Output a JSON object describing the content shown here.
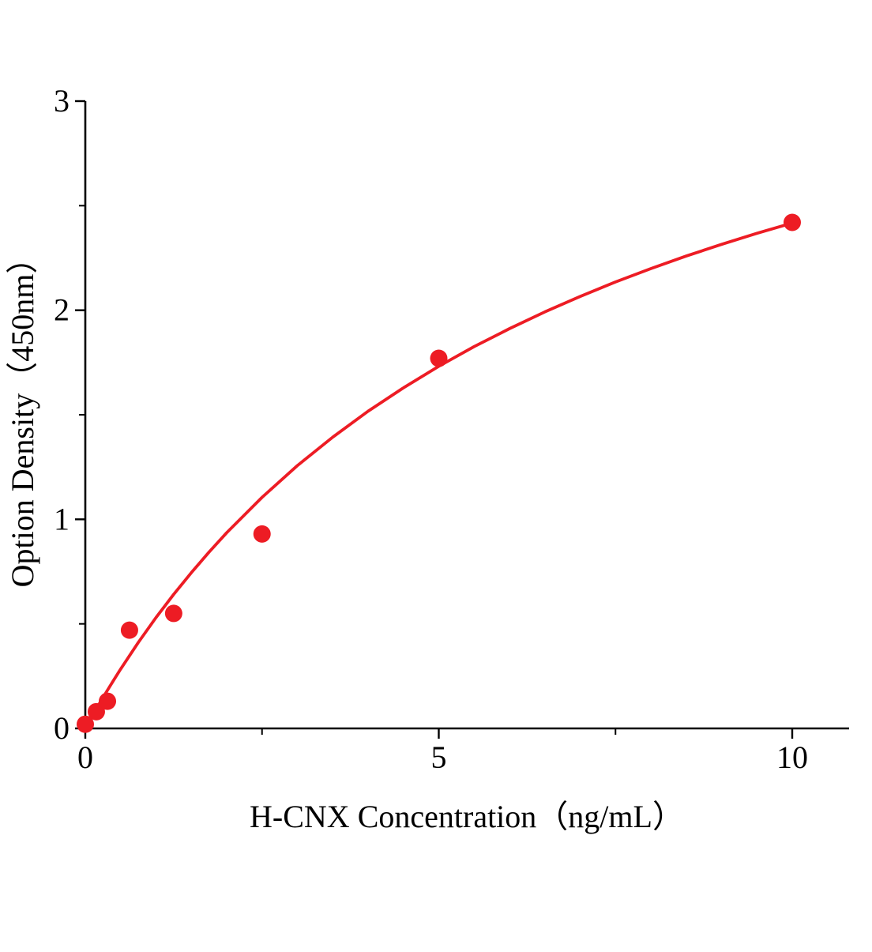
{
  "chart_data": {
    "type": "scatter",
    "title": "",
    "xlabel": "H-CNX Concentration（ng/mL）",
    "ylabel": "Option Density（450nm）",
    "xlim": [
      0,
      10.8
    ],
    "ylim": [
      0,
      3
    ],
    "x_ticks": [
      0,
      5,
      10
    ],
    "y_ticks": [
      0,
      1,
      2,
      3
    ],
    "x_minor_ticks": [
      2.5,
      7.5
    ],
    "y_minor_ticks": [
      0.5,
      1.5,
      2.5
    ],
    "grid": false,
    "legend": "none",
    "point_color": "#ed1c24",
    "line_color": "#ed1c24",
    "axis_color": "#000000",
    "points": [
      {
        "x": 0,
        "y": 0.02
      },
      {
        "x": 0.156,
        "y": 0.08
      },
      {
        "x": 0.313,
        "y": 0.13
      },
      {
        "x": 0.625,
        "y": 0.47
      },
      {
        "x": 1.25,
        "y": 0.55
      },
      {
        "x": 2.5,
        "y": 0.93
      },
      {
        "x": 5,
        "y": 1.77
      },
      {
        "x": 10,
        "y": 2.42
      }
    ],
    "fit": {
      "model": "saturation (y = 4.0x / (6.55 + x))"
    },
    "curve_points": [
      {
        "x": 0,
        "y": 0
      },
      {
        "x": 0.1,
        "y": 0.06
      },
      {
        "x": 0.2,
        "y": 0.119
      },
      {
        "x": 0.3,
        "y": 0.175
      },
      {
        "x": 0.4,
        "y": 0.23
      },
      {
        "x": 0.5,
        "y": 0.284
      },
      {
        "x": 0.75,
        "y": 0.411
      },
      {
        "x": 1,
        "y": 0.53
      },
      {
        "x": 1.25,
        "y": 0.641
      },
      {
        "x": 1.5,
        "y": 0.745
      },
      {
        "x": 1.75,
        "y": 0.843
      },
      {
        "x": 2,
        "y": 0.936
      },
      {
        "x": 2.5,
        "y": 1.105
      },
      {
        "x": 3,
        "y": 1.257
      },
      {
        "x": 3.5,
        "y": 1.393
      },
      {
        "x": 4,
        "y": 1.517
      },
      {
        "x": 4.5,
        "y": 1.629
      },
      {
        "x": 5,
        "y": 1.732
      },
      {
        "x": 5.5,
        "y": 1.826
      },
      {
        "x": 6,
        "y": 1.912
      },
      {
        "x": 6.5,
        "y": 1.992
      },
      {
        "x": 7,
        "y": 2.066
      },
      {
        "x": 7.5,
        "y": 2.135
      },
      {
        "x": 8,
        "y": 2.199
      },
      {
        "x": 8.5,
        "y": 2.259
      },
      {
        "x": 9,
        "y": 2.315
      },
      {
        "x": 9.5,
        "y": 2.368
      },
      {
        "x": 10,
        "y": 2.417
      }
    ]
  }
}
